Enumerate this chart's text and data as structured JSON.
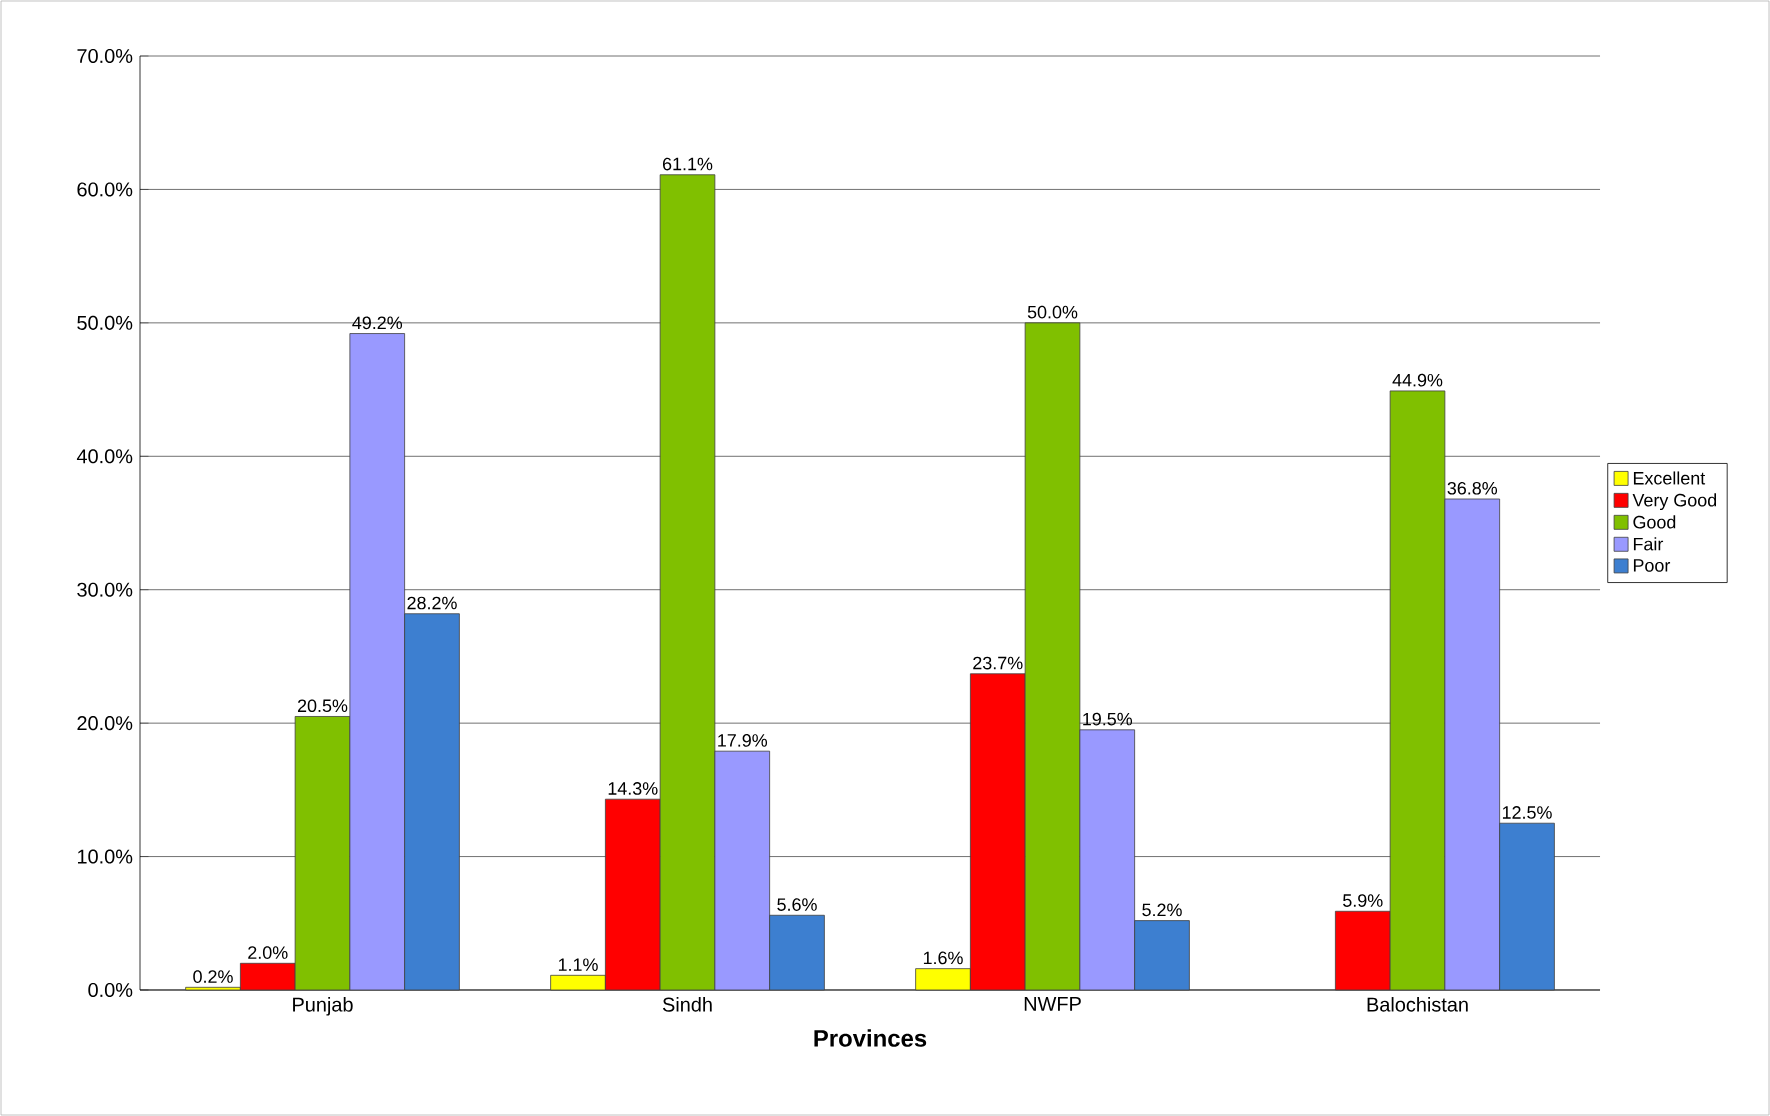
{
  "chart_data": {
    "type": "bar",
    "xlabel": "Provinces",
    "categories": [
      "Punjab",
      "Sindh",
      "NWFP",
      "Balochistan"
    ],
    "series": [
      {
        "name": "Excellent",
        "color": "#ffff00",
        "values": [
          0.2,
          1.1,
          1.6,
          null
        ],
        "value_labels": [
          "0.2%",
          "1.1%",
          "1.6%",
          null
        ]
      },
      {
        "name": "Very Good",
        "color": "#ff0000",
        "values": [
          2.0,
          14.3,
          23.7,
          5.9
        ],
        "value_labels": [
          "2.0%",
          "14.3%",
          "23.7%",
          "5.9%"
        ]
      },
      {
        "name": "Good",
        "color": "#80c000",
        "values": [
          20.5,
          61.1,
          50.0,
          44.9
        ],
        "value_labels": [
          "20.5%",
          "61.1%",
          "50.0%",
          "44.9%"
        ]
      },
      {
        "name": "Fair",
        "color": "#9999ff",
        "values": [
          49.2,
          17.9,
          19.5,
          36.8
        ],
        "value_labels": [
          "49.2%",
          "17.9%",
          "19.5%",
          "36.8%"
        ]
      },
      {
        "name": "Poor",
        "color": "#3d7fd0",
        "values": [
          28.2,
          5.6,
          5.2,
          12.5
        ],
        "value_labels": [
          "28.2%",
          "5.6%",
          "5.2%",
          "12.5%"
        ]
      }
    ],
    "ylim": [
      0,
      70
    ],
    "yticks": [
      {
        "value": 0,
        "label": "0.0%"
      },
      {
        "value": 10,
        "label": "10.0%"
      },
      {
        "value": 20,
        "label": "20.0%"
      },
      {
        "value": 30,
        "label": "30.0%"
      },
      {
        "value": 40,
        "label": "40.0%"
      },
      {
        "value": 50,
        "label": "50.0%"
      },
      {
        "value": 60,
        "label": "60.0%"
      },
      {
        "value": 70,
        "label": "70.0%"
      }
    ],
    "grid": "y",
    "legend": "right"
  }
}
